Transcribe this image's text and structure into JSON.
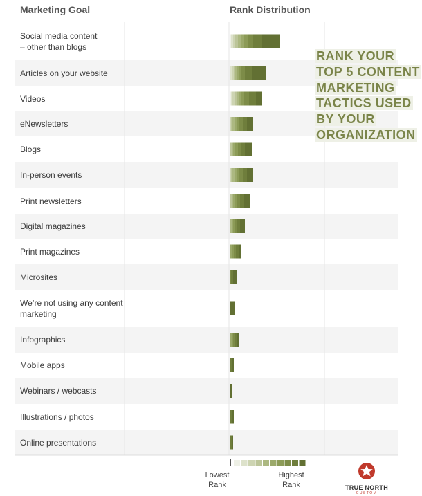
{
  "header": {
    "goal": "Marketing Goal",
    "rank": "Rank Distribution"
  },
  "callout": {
    "text": "RANK YOUR TOP 5 CONTENT MARKETING TACTICS USED BY YOUR ORGANIZATION"
  },
  "legend": {
    "low": "Lowest Rank",
    "high": "Highest Rank"
  },
  "logo": {
    "name": "TRUE NORTH",
    "sub": "CUSTOM",
    "icon": "star-icon",
    "color": "#c0392b"
  },
  "colors": {
    "rank_scale": [
      "#eef0e6",
      "#dde2cb",
      "#cdd4b2",
      "#bcc599",
      "#acb881",
      "#9ba96a",
      "#8c9b57",
      "#7d8c48",
      "#6f7e3c",
      "#627033"
    ],
    "row_stripe": "#f4f4f4",
    "callout_text": "#7a8449",
    "callout_bg": "#eef0e6"
  },
  "chart_data": {
    "type": "bar",
    "stacked": true,
    "categories": [
      "Social media content – other than blogs",
      "Articles on your website",
      "Videos",
      "eNewsletters",
      "Blogs",
      "In-person events",
      "Print newsletters",
      "Digital magazines",
      "Print magazines",
      "Microsites",
      "We’re not using any content marketing",
      "Infographics",
      "Mobile apps",
      "Webinars / webcasts",
      "Illustrations / photos",
      "Online presentations"
    ],
    "category_lines": [
      [
        "Social media content",
        "– other than blogs"
      ],
      [
        "Articles on your website"
      ],
      [
        "Videos"
      ],
      [
        "eNewsletters"
      ],
      [
        "Blogs"
      ],
      [
        "In-person events"
      ],
      [
        "Print newsletters"
      ],
      [
        "Digital magazines"
      ],
      [
        "Print magazines"
      ],
      [
        "Microsites"
      ],
      [
        "We’re not using any content",
        "marketing"
      ],
      [
        "Infographics"
      ],
      [
        "Mobile apps"
      ],
      [
        "Webinars / webcasts"
      ],
      [
        "Illustrations / photos"
      ],
      [
        "Online presentations"
      ]
    ],
    "rank_levels": 10,
    "segments": [
      [
        2,
        3,
        3,
        4,
        4,
        5,
        5,
        7,
        13,
        27
      ],
      [
        1,
        2,
        3,
        2,
        3,
        2,
        4,
        5,
        10,
        20
      ],
      [
        2,
        2,
        3,
        3,
        4,
        3,
        4,
        7,
        10,
        9
      ],
      [
        2,
        2,
        3,
        3,
        4,
        5,
        6,
        9
      ],
      [
        1,
        2,
        2,
        3,
        4,
        4,
        6,
        10
      ],
      [
        2,
        2,
        3,
        3,
        4,
        5,
        6,
        8
      ],
      [
        1,
        2,
        2,
        3,
        3,
        4,
        6,
        8
      ],
      [
        1,
        2,
        2,
        3,
        3,
        4,
        7
      ],
      [
        1,
        2,
        3,
        3,
        4,
        4
      ],
      [
        2,
        3,
        5
      ],
      [
        8
      ],
      [
        1,
        2,
        2,
        2,
        3,
        3
      ],
      [
        1,
        2,
        3
      ],
      [
        1,
        2
      ],
      [
        1,
        2,
        3
      ],
      [
        1,
        2,
        2
      ]
    ]
  }
}
